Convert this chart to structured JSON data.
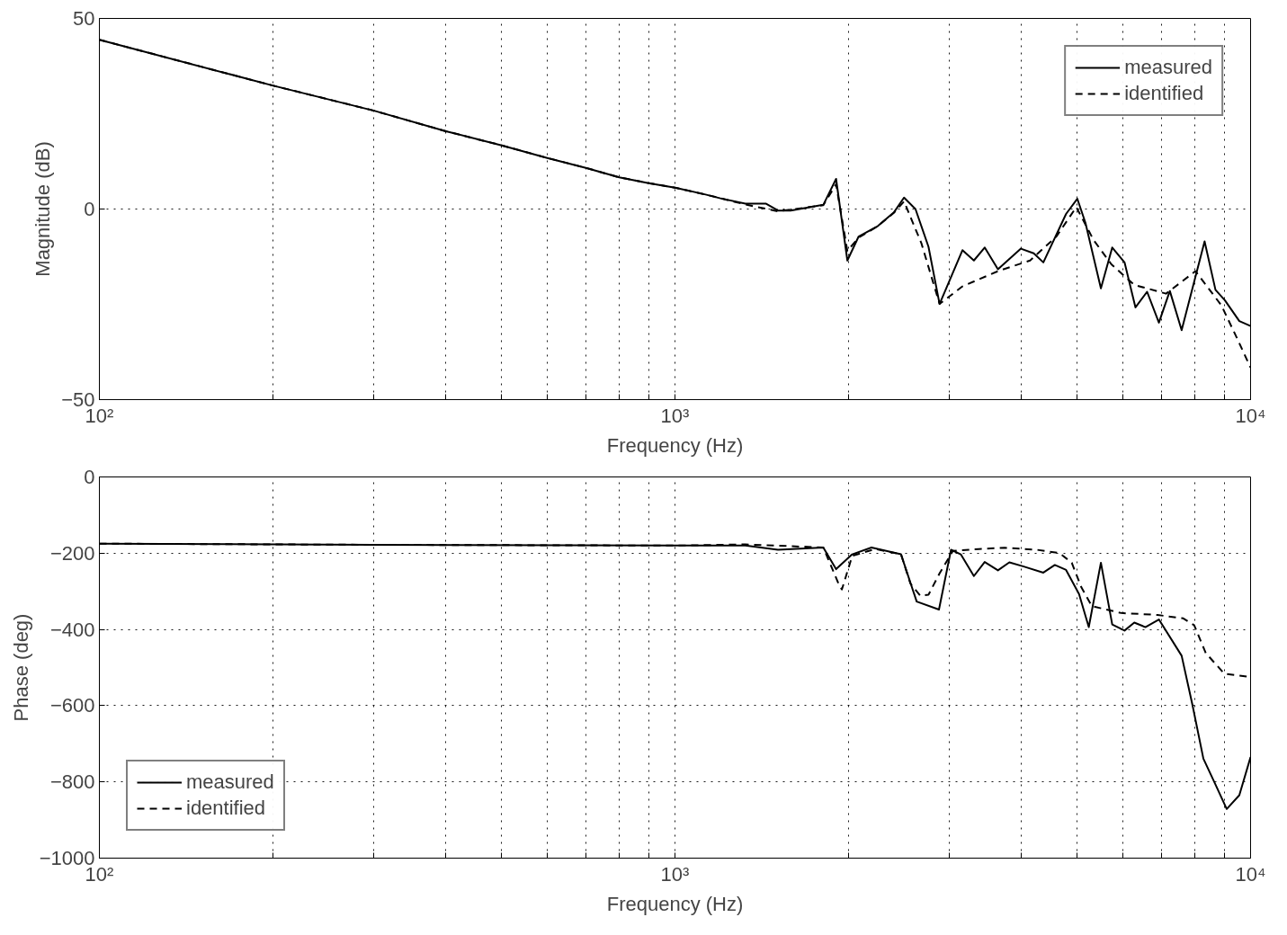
{
  "chart_data": [
    {
      "type": "line",
      "xlabel": "Frequency (Hz)",
      "ylabel": "Magnitude (dB)",
      "log": "x",
      "grid": true,
      "legend": "top right",
      "xlim": [
        100,
        10000
      ],
      "ylim": [
        -50,
        50
      ],
      "yticks": [
        -50,
        0,
        50
      ],
      "xticks": [
        {
          "value": 100,
          "label": "10²"
        },
        {
          "value": 200,
          "label": null
        },
        {
          "value": 300,
          "label": null
        },
        {
          "value": 400,
          "label": null
        },
        {
          "value": 500,
          "label": null
        },
        {
          "value": 600,
          "label": null
        },
        {
          "value": 700,
          "label": null
        },
        {
          "value": 800,
          "label": null
        },
        {
          "value": 900,
          "label": null
        },
        {
          "value": 1000,
          "label": "10³"
        },
        {
          "value": 2000,
          "label": null
        },
        {
          "value": 3000,
          "label": null
        },
        {
          "value": 4000,
          "label": null
        },
        {
          "value": 5000,
          "label": null
        },
        {
          "value": 6000,
          "label": null
        },
        {
          "value": 7000,
          "label": null
        },
        {
          "value": 8000,
          "label": null
        },
        {
          "value": 9000,
          "label": null
        },
        {
          "value": 10000,
          "label": "10⁴"
        }
      ],
      "series": [
        {
          "name": "measured",
          "color": "#000000",
          "line_style": "solid",
          "x": [
            100,
            200,
            300,
            400,
            500,
            600,
            700,
            800,
            900,
            1000,
            1130,
            1200,
            1325,
            1440,
            1510,
            1588,
            1810,
            1905,
            1993,
            2085,
            2250,
            2400,
            2500,
            2617,
            2757,
            2882,
            3158,
            3306,
            3452,
            3640,
            3990,
            4200,
            4365,
            4780,
            5000,
            5165,
            5495,
            5750,
            6040,
            6310,
            6610,
            6930,
            7240,
            7590,
            8320,
            8690,
            9020,
            9560,
            10000
          ],
          "values": [
            44.4,
            32.4,
            25.8,
            20.4,
            16.7,
            13.4,
            10.8,
            8.3,
            6.8,
            5.6,
            3.8,
            2.8,
            1.4,
            1.4,
            -0.4,
            -0.4,
            1.1,
            7.9,
            -13.5,
            -7.2,
            -4.5,
            -0.9,
            3.0,
            0,
            -9.9,
            -24.9,
            -10.8,
            -13.5,
            -10.1,
            -15.8,
            -10.4,
            -11.6,
            -14,
            -1.3,
            2.7,
            -3.6,
            -20.8,
            -10.1,
            -14,
            -25.8,
            -21.7,
            -29.8,
            -21.5,
            -31.8,
            -8.5,
            -21.2,
            -23.9,
            -29.4,
            -30.7
          ]
        },
        {
          "name": "identified",
          "color": "#000000",
          "line_style": "dashed",
          "x": [
            100,
            200,
            300,
            400,
            500,
            600,
            700,
            800,
            900,
            1000,
            1130,
            1325,
            1510,
            1810,
            1905,
            1993,
            2085,
            2250,
            2400,
            2500,
            2680,
            2882,
            3158,
            3640,
            4140,
            4600,
            4980,
            5335,
            5730,
            6280,
            7130,
            8020,
            8450,
            8900,
            9500,
            10000
          ],
          "values": [
            44.4,
            32.4,
            25.8,
            20.4,
            16.7,
            13.4,
            10.8,
            8.3,
            6.8,
            5.6,
            3.8,
            1.2,
            -0.6,
            1.0,
            6.5,
            -11,
            -7.5,
            -4.5,
            -1,
            2,
            -9,
            -24.9,
            -20.3,
            -16.3,
            -13.5,
            -7.2,
            0.5,
            -8.1,
            -14.5,
            -19.9,
            -22.2,
            -16.3,
            -20.8,
            -25.3,
            -34.3,
            -41.6
          ]
        }
      ]
    },
    {
      "type": "line",
      "xlabel": "Frequency (Hz)",
      "ylabel": "Phase (deg)",
      "log": "x",
      "grid": true,
      "legend": "bottom left",
      "xlim": [
        100,
        10000
      ],
      "ylim": [
        -1000,
        0
      ],
      "yticks": [
        -1000,
        -800,
        -600,
        -400,
        -200,
        0
      ],
      "xticks": [
        {
          "value": 100,
          "label": "10²"
        },
        {
          "value": 200,
          "label": null
        },
        {
          "value": 300,
          "label": null
        },
        {
          "value": 400,
          "label": null
        },
        {
          "value": 500,
          "label": null
        },
        {
          "value": 600,
          "label": null
        },
        {
          "value": 700,
          "label": null
        },
        {
          "value": 800,
          "label": null
        },
        {
          "value": 900,
          "label": null
        },
        {
          "value": 1000,
          "label": "10³"
        },
        {
          "value": 2000,
          "label": null
        },
        {
          "value": 3000,
          "label": null
        },
        {
          "value": 4000,
          "label": null
        },
        {
          "value": 5000,
          "label": null
        },
        {
          "value": 6000,
          "label": null
        },
        {
          "value": 7000,
          "label": null
        },
        {
          "value": 8000,
          "label": null
        },
        {
          "value": 9000,
          "label": null
        },
        {
          "value": 10000,
          "label": "10⁴"
        }
      ],
      "series": [
        {
          "name": "measured",
          "color": "#000000",
          "line_style": "solid",
          "x": [
            100,
            300,
            1000,
            1325,
            1510,
            1810,
            1905,
            2032,
            2195,
            2470,
            2630,
            2875,
            3017,
            3137,
            3306,
            3452,
            3640,
            3810,
            4035,
            4365,
            4570,
            4780,
            5035,
            5235,
            5495,
            5750,
            6040,
            6280,
            6565,
            6930,
            7590,
            7925,
            8280,
            8690,
            9090,
            9560,
            10000
          ],
          "values": [
            -175,
            -178,
            -180,
            -180,
            -191,
            -185,
            -242,
            -203,
            -185,
            -203,
            -327,
            -348,
            -191,
            -203,
            -260,
            -223,
            -245,
            -224,
            -235,
            -251,
            -231,
            -244,
            -307,
            -394,
            -225,
            -387,
            -403,
            -382,
            -394,
            -374,
            -469,
            -598,
            -739,
            -807,
            -871,
            -835,
            -735
          ]
        },
        {
          "name": "identified",
          "color": "#000000",
          "line_style": "dashed",
          "x": [
            100,
            300,
            1000,
            1325,
            1810,
            1930,
            1950,
            2032,
            2230,
            2470,
            2565,
            2670,
            2757,
            2882,
            3040,
            3370,
            3740,
            4250,
            4660,
            4890,
            5080,
            5300,
            5960,
            6890,
            7640,
            7980,
            8360,
            9000,
            10000
          ],
          "values": [
            -175,
            -178,
            -180,
            -177,
            -185,
            -285,
            -295,
            -207,
            -189,
            -203,
            -280,
            -312,
            -309,
            -253,
            -194,
            -189,
            -186,
            -191,
            -200,
            -225,
            -289,
            -339,
            -357,
            -362,
            -371,
            -389,
            -462,
            -516,
            -525
          ]
        }
      ]
    }
  ]
}
